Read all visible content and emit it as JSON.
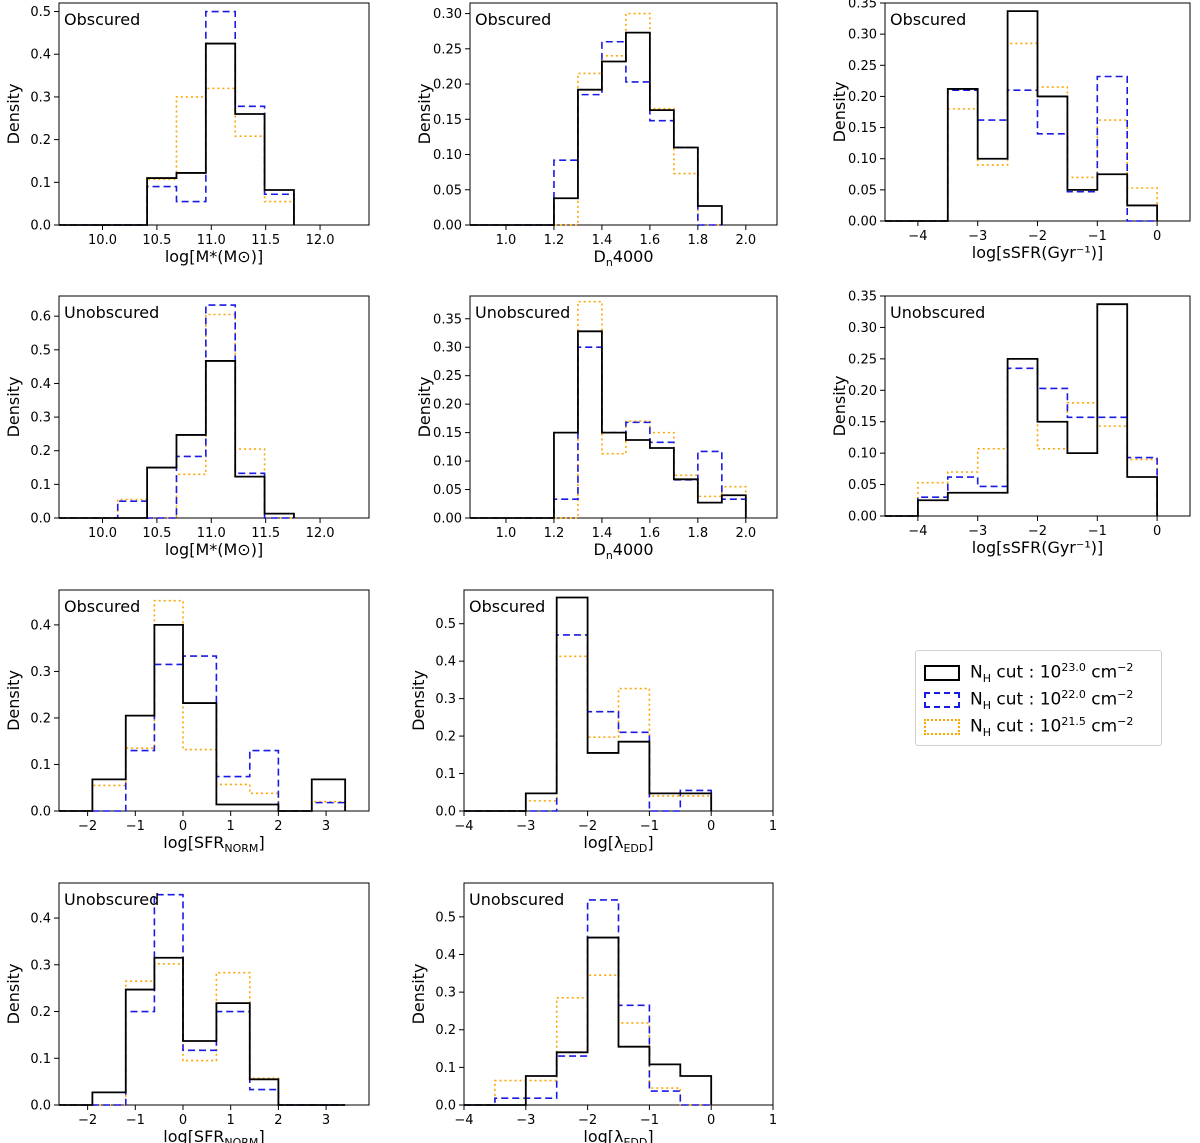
{
  "colors": {
    "black": "#000000",
    "blue": "#1a1ae6",
    "orange": "#ffa500"
  },
  "legend": {
    "entries": [
      {
        "series": "black",
        "pre": "N",
        "sub": "H",
        "mid": " cut : 10",
        "sup": "23.0",
        "post": " cm",
        "sup2": "−2"
      },
      {
        "series": "blue",
        "pre": "N",
        "sub": "H",
        "mid": " cut : 10",
        "sup": "22.0",
        "post": " cm",
        "sup2": "−2"
      },
      {
        "series": "orange",
        "pre": "N",
        "sub": "H",
        "mid": " cut : 10",
        "sup": "21.5",
        "post": " cm",
        "sup2": "−2"
      }
    ]
  },
  "chart_data": [
    {
      "type": "histogram",
      "panel": "mass-obscured",
      "title": "Obscured",
      "ylabel": "Density",
      "xlabel": "log[M*(M⊙)]",
      "xlim": [
        9.6,
        12.45
      ],
      "ylim": [
        0,
        0.52
      ],
      "xticks": [
        10.0,
        10.5,
        11.0,
        11.5,
        12.0
      ],
      "xtick_labels": [
        "10.0",
        "10.5",
        "11.0",
        "11.5",
        "12.0"
      ],
      "yticks": [
        0,
        0.1,
        0.2,
        0.3,
        0.4,
        0.5
      ],
      "ytick_labels": [
        "0.0",
        "0.1",
        "0.2",
        "0.3",
        "0.4",
        "0.5"
      ],
      "edges": [
        9.6,
        9.87,
        10.14,
        10.41,
        10.68,
        10.95,
        11.22,
        11.49,
        11.76,
        12.03
      ],
      "series": [
        {
          "name": "black",
          "values": [
            0,
            0,
            0,
            0.11,
            0.122,
            0.425,
            0.26,
            0.082
          ]
        },
        {
          "name": "blue",
          "values": [
            0,
            0,
            0,
            0.09,
            0.055,
            0.5,
            0.278,
            0.072
          ]
        },
        {
          "name": "orange",
          "values": [
            0,
            0,
            0,
            0.107,
            0.3,
            0.32,
            0.208,
            0.055
          ]
        }
      ]
    },
    {
      "type": "histogram",
      "panel": "dn-obscured",
      "title": "Obscured",
      "ylabel": "Density",
      "xlabel": "Dn4000",
      "xlim": [
        0.85,
        2.13
      ],
      "ylim": [
        0,
        0.315
      ],
      "xticks": [
        1.0,
        1.2,
        1.4,
        1.6,
        1.8,
        2.0
      ],
      "xtick_labels": [
        "1.0",
        "1.2",
        "1.4",
        "1.6",
        "1.8",
        "2.0"
      ],
      "yticks": [
        0,
        0.05,
        0.1,
        0.15,
        0.2,
        0.25,
        0.3
      ],
      "ytick_labels": [
        "0.00",
        "0.05",
        "0.10",
        "0.15",
        "0.20",
        "0.25",
        "0.30"
      ],
      "edges": [
        0.85,
        0.95,
        1.05,
        1.15,
        1.2,
        1.3,
        1.4,
        1.5,
        1.6,
        1.7,
        1.8,
        1.9
      ],
      "series": [
        {
          "name": "black",
          "values": [
            0,
            0,
            0,
            0,
            0.038,
            0.192,
            0.232,
            0.273,
            0.163,
            0.11,
            0.027
          ]
        },
        {
          "name": "blue",
          "values": [
            0,
            0,
            0,
            0,
            0.092,
            0.185,
            0.26,
            0.203,
            0.148,
            0.11,
            0
          ]
        },
        {
          "name": "orange",
          "values": [
            0,
            0,
            0,
            0,
            0,
            0.215,
            0.24,
            0.3,
            0.165,
            0.073,
            0
          ]
        }
      ]
    },
    {
      "type": "histogram",
      "panel": "ssfr-obscured",
      "title": "Obscured",
      "ylabel": "Density",
      "xlabel": "log[sSFR(Gyr⁻¹)]",
      "xlim": [
        -4.55,
        0.55
      ],
      "ylim": [
        0,
        0.35
      ],
      "xticks": [
        -4,
        -3,
        -2,
        -1,
        0
      ],
      "xtick_labels": [
        "−4",
        "−3",
        "−2",
        "−1",
        "0"
      ],
      "yticks": [
        0,
        0.05,
        0.1,
        0.15,
        0.2,
        0.25,
        0.3,
        0.35
      ],
      "ytick_labels": [
        "0.00",
        "0.05",
        "0.10",
        "0.15",
        "0.20",
        "0.25",
        "0.30",
        "0.35"
      ],
      "edges": [
        -4.55,
        -4.0,
        -3.5,
        -3.0,
        -2.5,
        -2.0,
        -1.5,
        -1.0,
        -0.5,
        0.0
      ],
      "series": [
        {
          "name": "black",
          "values": [
            0,
            0,
            0.212,
            0.1,
            0.337,
            0.2,
            0.05,
            0.075,
            0.025
          ]
        },
        {
          "name": "blue",
          "values": [
            0,
            0,
            0.21,
            0.162,
            0.21,
            0.14,
            0.047,
            0.232,
            0
          ]
        },
        {
          "name": "orange",
          "values": [
            0,
            0,
            0.18,
            0.09,
            0.285,
            0.215,
            0.07,
            0.162,
            0.053
          ]
        }
      ]
    },
    {
      "type": "histogram",
      "panel": "mass-unobscured",
      "title": "Unobscured",
      "ylabel": "Density",
      "xlabel": "log[M*(M⊙)]",
      "xlim": [
        9.6,
        12.45
      ],
      "ylim": [
        0,
        0.66
      ],
      "xticks": [
        10.0,
        10.5,
        11.0,
        11.5,
        12.0
      ],
      "xtick_labels": [
        "10.0",
        "10.5",
        "11.0",
        "11.5",
        "12.0"
      ],
      "yticks": [
        0,
        0.1,
        0.2,
        0.3,
        0.4,
        0.5,
        0.6
      ],
      "ytick_labels": [
        "0.0",
        "0.1",
        "0.2",
        "0.3",
        "0.4",
        "0.5",
        "0.6"
      ],
      "edges": [
        9.6,
        9.87,
        10.14,
        10.41,
        10.68,
        10.95,
        11.22,
        11.49,
        11.76,
        12.03
      ],
      "series": [
        {
          "name": "black",
          "values": [
            0,
            0,
            0,
            0.15,
            0.247,
            0.467,
            0.123,
            0.013
          ]
        },
        {
          "name": "blue",
          "values": [
            0,
            0,
            0.05,
            0,
            0.183,
            0.633,
            0.133,
            0
          ]
        },
        {
          "name": "orange",
          "values": [
            0,
            0,
            0.055,
            0,
            0.13,
            0.605,
            0.205,
            0
          ]
        }
      ]
    },
    {
      "type": "histogram",
      "panel": "dn-unobscured",
      "title": "Unobscured",
      "ylabel": "Density",
      "xlabel": "Dn4000",
      "xlim": [
        0.85,
        2.13
      ],
      "ylim": [
        0,
        0.39
      ],
      "xticks": [
        1.0,
        1.2,
        1.4,
        1.6,
        1.8,
        2.0
      ],
      "xtick_labels": [
        "1.0",
        "1.2",
        "1.4",
        "1.6",
        "1.8",
        "2.0"
      ],
      "yticks": [
        0,
        0.05,
        0.1,
        0.15,
        0.2,
        0.25,
        0.3,
        0.35
      ],
      "ytick_labels": [
        "0.00",
        "0.05",
        "0.10",
        "0.15",
        "0.20",
        "0.25",
        "0.30",
        "0.35"
      ],
      "edges": [
        0.85,
        0.95,
        1.05,
        1.15,
        1.2,
        1.3,
        1.4,
        1.5,
        1.6,
        1.7,
        1.8,
        1.9,
        2.0
      ],
      "series": [
        {
          "name": "black",
          "values": [
            0,
            0,
            0,
            0,
            0.15,
            0.328,
            0.15,
            0.137,
            0.123,
            0.068,
            0.027,
            0.04
          ]
        },
        {
          "name": "blue",
          "values": [
            0,
            0,
            0,
            0,
            0.033,
            0.3,
            0.15,
            0.168,
            0.133,
            0.067,
            0.117,
            0.033
          ]
        },
        {
          "name": "orange",
          "values": [
            0,
            0,
            0,
            0,
            0,
            0.38,
            0.113,
            0.17,
            0.15,
            0.075,
            0.038,
            0.055
          ]
        }
      ]
    },
    {
      "type": "histogram",
      "panel": "ssfr-unobscured",
      "title": "Unobscured",
      "ylabel": "Density",
      "xlabel": "log[sSFR(Gyr⁻¹)]",
      "xlim": [
        -4.55,
        0.55
      ],
      "ylim": [
        0,
        0.35
      ],
      "xticks": [
        -4,
        -3,
        -2,
        -1,
        0
      ],
      "xtick_labels": [
        "−4",
        "−3",
        "−2",
        "−1",
        "0"
      ],
      "yticks": [
        0,
        0.05,
        0.1,
        0.15,
        0.2,
        0.25,
        0.3,
        0.35
      ],
      "ytick_labels": [
        "0.00",
        "0.05",
        "0.10",
        "0.15",
        "0.20",
        "0.25",
        "0.30",
        "0.35"
      ],
      "edges": [
        -4.55,
        -4.0,
        -3.5,
        -3.0,
        -2.5,
        -2.0,
        -1.5,
        -1.0,
        -0.5,
        0.0
      ],
      "series": [
        {
          "name": "black",
          "values": [
            0,
            0.025,
            0.037,
            0.037,
            0.25,
            0.15,
            0.1,
            0.337,
            0.062
          ]
        },
        {
          "name": "blue",
          "values": [
            0,
            0.03,
            0.062,
            0.047,
            0.235,
            0.203,
            0.157,
            0.157,
            0.093
          ]
        },
        {
          "name": "orange",
          "values": [
            0,
            0.053,
            0.07,
            0.107,
            0.25,
            0.107,
            0.18,
            0.143,
            0.09
          ]
        }
      ]
    },
    {
      "type": "histogram",
      "panel": "sfrnorm-obscured",
      "title": "Obscured",
      "ylabel": "Density",
      "xlabel": "log[SFR_NORM]",
      "xlim": [
        -2.6,
        3.9
      ],
      "ylim": [
        0,
        0.475
      ],
      "xticks": [
        -2,
        -1,
        0,
        1,
        2,
        3
      ],
      "xtick_labels": [
        "−2",
        "−1",
        "0",
        "1",
        "2",
        "3"
      ],
      "yticks": [
        0,
        0.1,
        0.2,
        0.3,
        0.4
      ],
      "ytick_labels": [
        "0.0",
        "0.1",
        "0.2",
        "0.3",
        "0.4"
      ],
      "edges": [
        -2.6,
        -1.9,
        -1.2,
        -0.6,
        0.0,
        0.7,
        1.4,
        2.0,
        2.7,
        3.4
      ],
      "series": [
        {
          "name": "black",
          "values": [
            0,
            0.068,
            0.205,
            0.4,
            0.232,
            0.014,
            0.014,
            0,
            0.068
          ]
        },
        {
          "name": "blue",
          "values": [
            0,
            0,
            0.13,
            0.315,
            0.333,
            0.074,
            0.13,
            0,
            0.018
          ]
        },
        {
          "name": "orange",
          "values": [
            0,
            0.055,
            0.135,
            0.452,
            0.132,
            0.057,
            0.038,
            0,
            0.02
          ]
        }
      ]
    },
    {
      "type": "histogram",
      "panel": "edd-obscured",
      "title": "Obscured",
      "ylabel": "Density",
      "xlabel": "log[λ_EDD]",
      "xlim": [
        -4,
        1
      ],
      "ylim": [
        0,
        0.59
      ],
      "xticks": [
        -4,
        -3,
        -2,
        -1,
        0,
        1
      ],
      "xtick_labels": [
        "−4",
        "−3",
        "−2",
        "−1",
        "0",
        "1"
      ],
      "yticks": [
        0,
        0.1,
        0.2,
        0.3,
        0.4,
        0.5
      ],
      "ytick_labels": [
        "0.0",
        "0.1",
        "0.2",
        "0.3",
        "0.4",
        "0.5"
      ],
      "edges": [
        -4,
        -3.0,
        -2.5,
        -2.0,
        -1.5,
        -1.0,
        -0.5,
        0.0
      ],
      "series": [
        {
          "name": "black",
          "values": [
            0,
            0.047,
            0.57,
            0.155,
            0.185,
            0.047,
            0.047
          ]
        },
        {
          "name": "blue",
          "values": [
            0,
            0,
            0.47,
            0.265,
            0.21,
            0,
            0.055
          ]
        },
        {
          "name": "orange",
          "values": [
            0,
            0.027,
            0.413,
            0.197,
            0.327,
            0.04,
            0.04
          ]
        }
      ]
    },
    {
      "type": "histogram",
      "panel": "sfrnorm-unobscured",
      "title": "Unobscured",
      "ylabel": "Density",
      "xlabel": "log[SFR_NORM]",
      "xlim": [
        -2.6,
        3.9
      ],
      "ylim": [
        0,
        0.475
      ],
      "xticks": [
        -2,
        -1,
        0,
        1,
        2,
        3
      ],
      "xtick_labels": [
        "−2",
        "−1",
        "0",
        "1",
        "2",
        "3"
      ],
      "yticks": [
        0,
        0.1,
        0.2,
        0.3,
        0.4
      ],
      "ytick_labels": [
        "0.0",
        "0.1",
        "0.2",
        "0.3",
        "0.4"
      ],
      "edges": [
        -2.6,
        -1.9,
        -1.2,
        -0.6,
        0.0,
        0.7,
        1.4,
        2.0,
        2.7,
        3.4
      ],
      "series": [
        {
          "name": "black",
          "values": [
            0,
            0.027,
            0.247,
            0.315,
            0.137,
            0.218,
            0.055,
            0,
            0
          ]
        },
        {
          "name": "blue",
          "values": [
            0,
            0,
            0.2,
            0.45,
            0.117,
            0.2,
            0.033,
            0,
            0
          ]
        },
        {
          "name": "orange",
          "values": [
            0,
            0,
            0.265,
            0.302,
            0.095,
            0.283,
            0.057,
            0,
            0
          ]
        }
      ]
    },
    {
      "type": "histogram",
      "panel": "edd-unobscured",
      "title": "Unobscured",
      "ylabel": "Density",
      "xlabel": "log[λ_EDD]",
      "xlim": [
        -4,
        1
      ],
      "ylim": [
        0,
        0.59
      ],
      "xticks": [
        -4,
        -3,
        -2,
        -1,
        0,
        1
      ],
      "xtick_labels": [
        "−4",
        "−3",
        "−2",
        "−1",
        "0",
        "1"
      ],
      "yticks": [
        0,
        0.1,
        0.2,
        0.3,
        0.4,
        0.5
      ],
      "ytick_labels": [
        "0.0",
        "0.1",
        "0.2",
        "0.3",
        "0.4",
        "0.5"
      ],
      "edges": [
        -4,
        -3.5,
        -3.0,
        -2.5,
        -2.0,
        -1.5,
        -1.0,
        -0.5,
        0.0
      ],
      "series": [
        {
          "name": "black",
          "values": [
            0,
            0,
            0.077,
            0.14,
            0.445,
            0.155,
            0.108,
            0.077
          ]
        },
        {
          "name": "blue",
          "values": [
            0,
            0.018,
            0.018,
            0.13,
            0.545,
            0.265,
            0.037,
            0
          ]
        },
        {
          "name": "orange",
          "values": [
            0,
            0.065,
            0.065,
            0.285,
            0.345,
            0.218,
            0.045,
            0
          ]
        }
      ]
    }
  ]
}
